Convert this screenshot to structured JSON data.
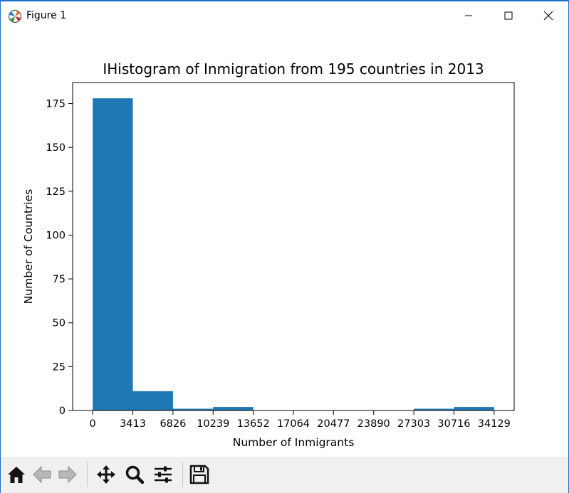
{
  "window": {
    "title": "Figure 1",
    "icon": "matplotlib-logo-icon",
    "controls": [
      "minimize-icon",
      "maximize-icon",
      "close-icon"
    ]
  },
  "toolbar": {
    "items": [
      "home-icon",
      "back-arrow-icon",
      "forward-arrow-icon",
      "pan-icon",
      "zoom-icon",
      "configure-subplots-icon",
      "save-icon"
    ]
  },
  "colors": {
    "bar": "#1f77b4",
    "window_border": "#1f6fd0",
    "toolbar_bg": "#f0f0f0"
  },
  "chart_data": {
    "type": "bar",
    "title": "IHistogram of Inmigration from 195 countries in 2013",
    "xlabel": "Number of Inmigrants",
    "ylabel": "Number of Countries",
    "bin_edges": [
      0,
      3413,
      6826,
      10239,
      13652,
      17064,
      20477,
      23890,
      27303,
      30716,
      34129
    ],
    "values": [
      178,
      11,
      1,
      2,
      0,
      0,
      0,
      0,
      1,
      2
    ],
    "xticks": [
      "0",
      "3413",
      "6826",
      "10239",
      "13652",
      "17064",
      "20477",
      "23890",
      "27303",
      "30716",
      "34129"
    ],
    "yticks": [
      0,
      25,
      50,
      75,
      100,
      125,
      150,
      175
    ],
    "xlim": [
      -1706,
      35835
    ],
    "ylim": [
      0,
      187
    ],
    "grid": false
  }
}
